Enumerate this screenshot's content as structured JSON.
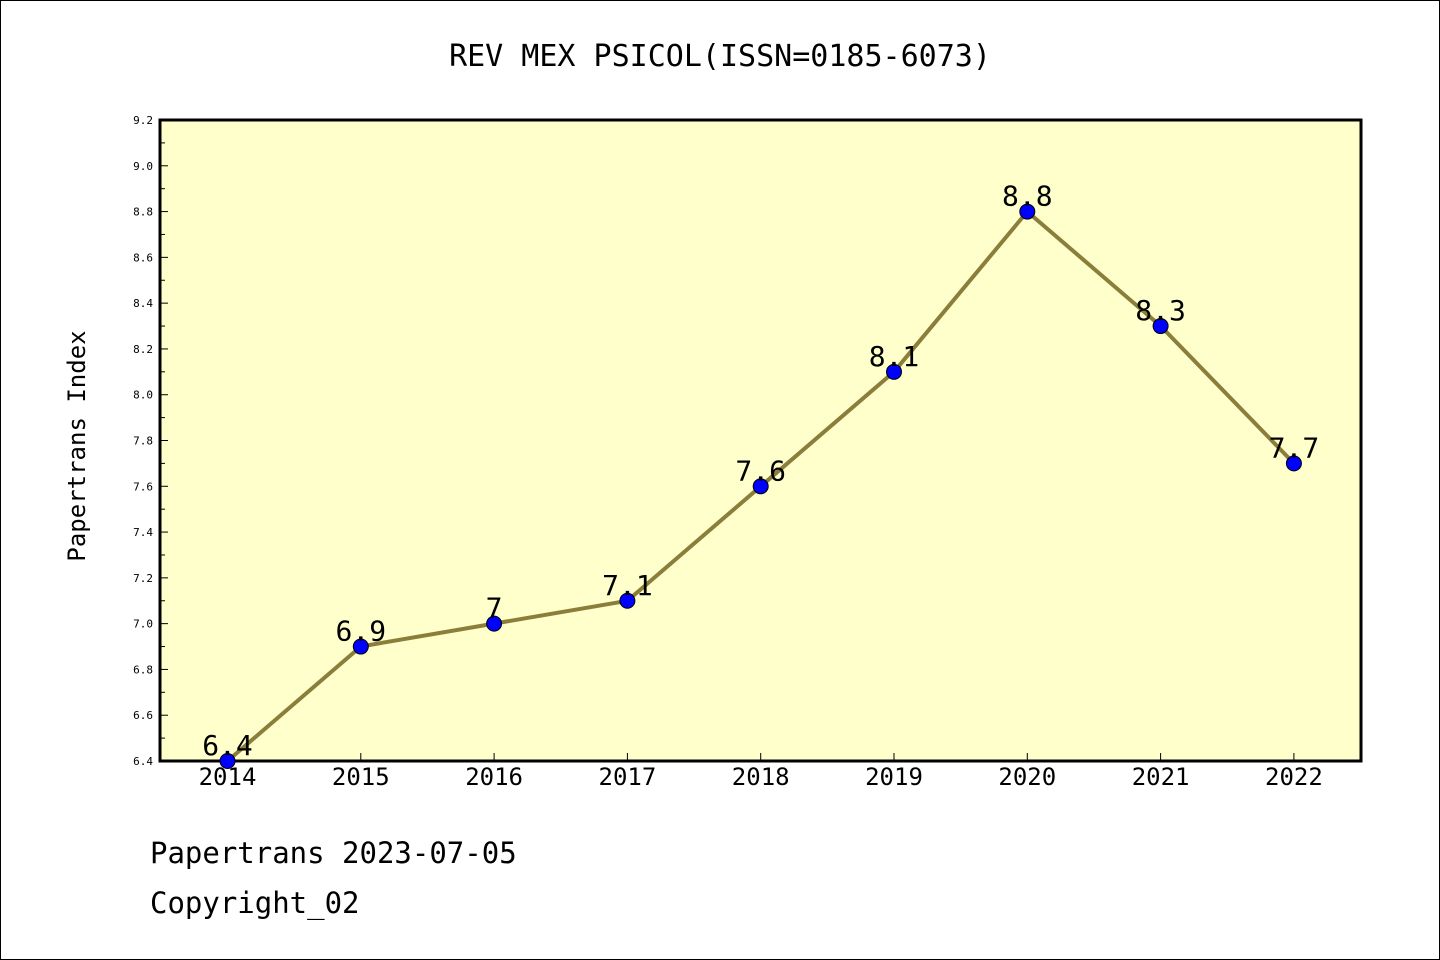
{
  "chart_data": {
    "type": "line",
    "title": "REV MEX PSICOL(ISSN=0185-6073)",
    "xlabel": "",
    "ylabel": "Papertrans Index",
    "categories": [
      "2014",
      "2015",
      "2016",
      "2017",
      "2018",
      "2019",
      "2020",
      "2021",
      "2022"
    ],
    "series": [
      {
        "values": [
          6.4,
          6.9,
          7.0,
          7.1,
          7.6,
          8.1,
          8.8,
          8.3,
          7.7
        ],
        "labels": [
          "6.4",
          "6.9",
          "7",
          "7.1",
          "7.6",
          "8.1",
          "8.8",
          "8.3",
          "7.7"
        ]
      }
    ],
    "ylim": [
      6.4,
      9.2
    ],
    "yticks": [
      "6.4",
      "6.6",
      "6.8",
      "7.0",
      "7.2",
      "7.4",
      "7.6",
      "7.8",
      "8.0",
      "8.2",
      "8.4",
      "8.6",
      "8.8",
      "9.0",
      "9.2"
    ],
    "grid": false,
    "colors": {
      "plot_background": "#ffffcc",
      "line": "#8b7d3a",
      "marker": "#0000ff"
    }
  },
  "footer": {
    "line1": "Papertrans 2023-07-05",
    "line2": "Copyright_02"
  }
}
